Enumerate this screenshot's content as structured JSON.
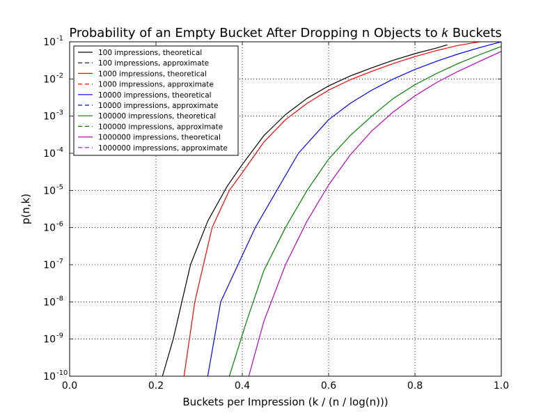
{
  "chart_data": {
    "type": "line",
    "title": "Probability of an Empty Bucket After Dropping n Objects to 𝑘 Buckets",
    "xlabel": "Buckets per Impression (k / (n / log(n)))",
    "ylabel": "p(n,k)",
    "xlim": [
      0.0,
      1.0
    ],
    "ylim": [
      1e-10,
      0.1
    ],
    "yscale": "log",
    "grid": true,
    "legend_position": "upper-left",
    "x_ticks": [
      "0.0",
      "0.2",
      "0.4",
      "0.6",
      "0.8",
      "1.0"
    ],
    "y_ticks": [
      {
        "base": "10",
        "exp": "-10"
      },
      {
        "base": "10",
        "exp": "-9"
      },
      {
        "base": "10",
        "exp": "-8"
      },
      {
        "base": "10",
        "exp": "-7"
      },
      {
        "base": "10",
        "exp": "-6"
      },
      {
        "base": "10",
        "exp": "-5"
      },
      {
        "base": "10",
        "exp": "-4"
      },
      {
        "base": "10",
        "exp": "-3"
      },
      {
        "base": "10",
        "exp": "-2"
      },
      {
        "base": "10",
        "exp": "-1"
      }
    ],
    "legend": [
      {
        "label": "100 impressions, theoretical",
        "color": "#000000",
        "style": "solid"
      },
      {
        "label": "100 impressions, approximate",
        "color": "#000000",
        "style": "dashed"
      },
      {
        "label": "1000 impressions, theoretical",
        "color": "#ff0000",
        "style": "solid"
      },
      {
        "label": "1000 impressions, approximate",
        "color": "#ff0000",
        "style": "dashed"
      },
      {
        "label": "10000 impressions, theoretical",
        "color": "#0000ff",
        "style": "solid"
      },
      {
        "label": "10000 impressions, approximate",
        "color": "#0000ff",
        "style": "dashed"
      },
      {
        "label": "100000 impressions, theoretical",
        "color": "#008000",
        "style": "solid"
      },
      {
        "label": "100000 impressions, approximate",
        "color": "#008000",
        "style": "dashed"
      },
      {
        "label": "1000000 impressions, theoretical",
        "color": "#bf00bf",
        "style": "solid"
      },
      {
        "label": "1000000 impressions, approximate",
        "color": "#bf00bf",
        "style": "dashed"
      }
    ],
    "series": [
      {
        "name": "100 impressions, theoretical",
        "color": "#000000",
        "points": [
          [
            0.215,
            1e-10
          ],
          [
            0.24,
            1e-09
          ],
          [
            0.26,
            1e-08
          ],
          [
            0.28,
            1e-07
          ],
          [
            0.32,
            1.5e-06
          ],
          [
            0.365,
            1.3e-05
          ],
          [
            0.4,
            5e-05
          ],
          [
            0.45,
            0.0003
          ],
          [
            0.5,
            0.0011
          ],
          [
            0.55,
            0.003
          ],
          [
            0.6,
            0.0065
          ],
          [
            0.65,
            0.012
          ],
          [
            0.7,
            0.02
          ],
          [
            0.75,
            0.032
          ],
          [
            0.8,
            0.048
          ],
          [
            0.85,
            0.068
          ],
          [
            0.875,
            0.083
          ]
        ]
      },
      {
        "name": "1000 impressions, theoretical",
        "color": "#ff0000",
        "points": [
          [
            0.265,
            1e-10
          ],
          [
            0.29,
            1e-08
          ],
          [
            0.33,
            1e-06
          ],
          [
            0.37,
            1e-05
          ],
          [
            0.4,
            3e-05
          ],
          [
            0.45,
            0.0002
          ],
          [
            0.5,
            0.0008
          ],
          [
            0.55,
            0.0022
          ],
          [
            0.6,
            0.005
          ],
          [
            0.65,
            0.0095
          ],
          [
            0.7,
            0.016
          ],
          [
            0.75,
            0.026
          ],
          [
            0.8,
            0.04
          ],
          [
            0.85,
            0.058
          ],
          [
            0.9,
            0.08
          ],
          [
            0.95,
            0.1
          ]
        ]
      },
      {
        "name": "10000 impressions, theoretical",
        "color": "#0000ff",
        "points": [
          [
            0.32,
            1e-10
          ],
          [
            0.35,
            1e-08
          ],
          [
            0.39,
            1e-07
          ],
          [
            0.43,
            1e-06
          ],
          [
            0.48,
            1e-05
          ],
          [
            0.53,
            0.0001
          ],
          [
            0.6,
            0.0008
          ],
          [
            0.65,
            0.0022
          ],
          [
            0.7,
            0.005
          ],
          [
            0.75,
            0.01
          ],
          [
            0.8,
            0.018
          ],
          [
            0.85,
            0.03
          ],
          [
            0.9,
            0.047
          ],
          [
            0.95,
            0.07
          ],
          [
            1.0,
            0.1
          ]
        ]
      },
      {
        "name": "100000 impressions, theoretical",
        "color": "#008000",
        "points": [
          [
            0.37,
            1e-10
          ],
          [
            0.41,
            3e-09
          ],
          [
            0.45,
            7e-08
          ],
          [
            0.5,
            1e-06
          ],
          [
            0.55,
            1e-05
          ],
          [
            0.6,
            7e-05
          ],
          [
            0.65,
            0.0003
          ],
          [
            0.7,
            0.001
          ],
          [
            0.75,
            0.003
          ],
          [
            0.8,
            0.007
          ],
          [
            0.85,
            0.014
          ],
          [
            0.9,
            0.026
          ],
          [
            0.95,
            0.045
          ],
          [
            1.0,
            0.075
          ]
        ]
      },
      {
        "name": "1000000 impressions, theoretical",
        "color": "#bf00bf",
        "points": [
          [
            0.415,
            1e-10
          ],
          [
            0.45,
            3e-09
          ],
          [
            0.5,
            1e-07
          ],
          [
            0.55,
            1.5e-06
          ],
          [
            0.6,
            1.4e-05
          ],
          [
            0.65,
            9e-05
          ],
          [
            0.7,
            0.0004
          ],
          [
            0.75,
            0.0013
          ],
          [
            0.8,
            0.0035
          ],
          [
            0.85,
            0.008
          ],
          [
            0.9,
            0.016
          ],
          [
            0.95,
            0.03
          ],
          [
            1.0,
            0.055
          ]
        ]
      }
    ]
  }
}
